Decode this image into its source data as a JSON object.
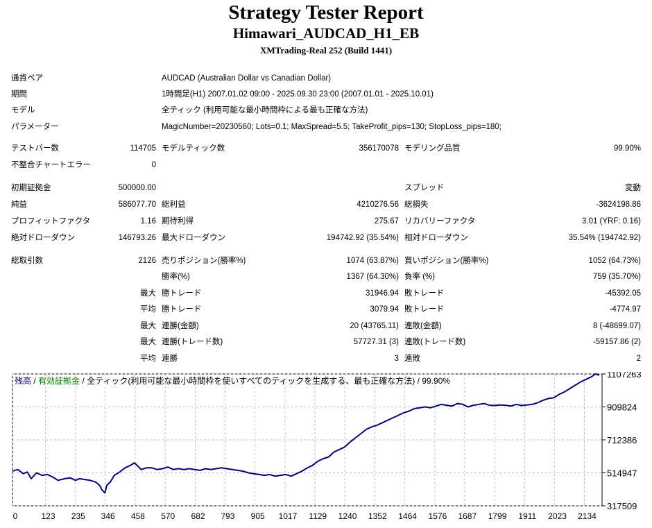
{
  "report": {
    "title": "Strategy Tester Report",
    "subtitle": "Himawari_AUDCAD_H1_EB",
    "build": "XMTrading-Real 252 (Build 1441)"
  },
  "info": [
    {
      "label": "通貨ペア",
      "value": "AUDCAD (Australian Dollar vs Canadian Dollar)"
    },
    {
      "label": "期間",
      "value": "1時間足(H1) 2007.01.02 09:00 - 2025.09.30 23:00 (2007.01.01 - 2025.10.01)"
    },
    {
      "label": "モデル",
      "value": "全ティック (利用可能な最小時間枠による最も正確な方法)"
    },
    {
      "label": "パラメーター",
      "value": "MagicNumber=20230560; Lots=0.1; MaxSpread=5.5; TakeProfit_pips=130; StopLoss_pips=180;"
    }
  ],
  "rows": [
    {
      "c": [
        {
          "t": "テストバー数",
          "x": 16
        },
        {
          "t": "114705",
          "x": 225,
          "r": true
        },
        {
          "t": "モデルティック数",
          "x": 233
        },
        {
          "t": "356170078",
          "x": 575,
          "r": true
        },
        {
          "t": "モデリング品質",
          "x": 583
        },
        {
          "t": "99.90%",
          "x": 924,
          "r": true
        }
      ]
    },
    {
      "c": [
        {
          "t": "不整合チャートエラー",
          "x": 16
        },
        {
          "t": "0",
          "x": 225,
          "r": true
        }
      ]
    },
    {
      "c": [
        {
          "t": "初期証拠金",
          "x": 16
        },
        {
          "t": "500000.00",
          "x": 225,
          "r": true
        },
        {
          "t": "スプレッド",
          "x": 583
        },
        {
          "t": "変動",
          "x": 924,
          "r": true
        }
      ]
    },
    {
      "c": [
        {
          "t": "純益",
          "x": 16
        },
        {
          "t": "586077.70",
          "x": 225,
          "r": true
        },
        {
          "t": "総利益",
          "x": 233
        },
        {
          "t": "4210276.56",
          "x": 575,
          "r": true
        },
        {
          "t": "総損失",
          "x": 583
        },
        {
          "t": "-3624198.86",
          "x": 924,
          "r": true
        }
      ]
    },
    {
      "c": [
        {
          "t": "プロフィットファクタ",
          "x": 16
        },
        {
          "t": "1.16",
          "x": 225,
          "r": true
        },
        {
          "t": "期待利得",
          "x": 233
        },
        {
          "t": "275.67",
          "x": 575,
          "r": true
        },
        {
          "t": "リカバリーファクタ",
          "x": 583
        },
        {
          "t": "3.01 (YRF: 0.16)",
          "x": 924,
          "r": true
        }
      ]
    },
    {
      "c": [
        {
          "t": "絶対ドローダウン",
          "x": 16
        },
        {
          "t": "146793.26",
          "x": 225,
          "r": true
        },
        {
          "t": "最大ドローダウン",
          "x": 233
        },
        {
          "t": "194742.92 (35.54%)",
          "x": 575,
          "r": true
        },
        {
          "t": "相対ドローダウン",
          "x": 583
        },
        {
          "t": "35.54% (194742.92)",
          "x": 924,
          "r": true
        }
      ]
    },
    {
      "c": [
        {
          "t": "総取引数",
          "x": 16
        },
        {
          "t": "2126",
          "x": 225,
          "r": true
        },
        {
          "t": "売りポジション(勝率%)",
          "x": 233
        },
        {
          "t": "1074 (63.87%)",
          "x": 575,
          "r": true
        },
        {
          "t": "買いポジション(勝率%)",
          "x": 583
        },
        {
          "t": "1052 (64.73%)",
          "x": 924,
          "r": true
        }
      ]
    },
    {
      "c": [
        {
          "t": "勝率(%)",
          "x": 233
        },
        {
          "t": "1367 (64.30%)",
          "x": 575,
          "r": true
        },
        {
          "t": "負率 (%)",
          "x": 583
        },
        {
          "t": "759 (35.70%)",
          "x": 924,
          "r": true
        }
      ]
    },
    {
      "c": [
        {
          "t": "最大",
          "x": 225,
          "r": true
        },
        {
          "t": "勝トレード",
          "x": 233
        },
        {
          "t": "31946.94",
          "x": 575,
          "r": true
        },
        {
          "t": "敗トレード",
          "x": 583
        },
        {
          "t": "-45392.05",
          "x": 924,
          "r": true
        }
      ]
    },
    {
      "c": [
        {
          "t": "平均",
          "x": 225,
          "r": true
        },
        {
          "t": "勝トレード",
          "x": 233
        },
        {
          "t": "3079.94",
          "x": 575,
          "r": true
        },
        {
          "t": "敗トレード",
          "x": 583
        },
        {
          "t": "-4774.97",
          "x": 924,
          "r": true
        }
      ]
    },
    {
      "c": [
        {
          "t": "最大",
          "x": 225,
          "r": true
        },
        {
          "t": "連勝(金額)",
          "x": 233
        },
        {
          "t": "20 (43765.11)",
          "x": 575,
          "r": true
        },
        {
          "t": "連敗(金額)",
          "x": 583
        },
        {
          "t": "8 (-48699.07)",
          "x": 924,
          "r": true
        }
      ]
    },
    {
      "c": [
        {
          "t": "最大",
          "x": 225,
          "r": true
        },
        {
          "t": "連勝(トレード数)",
          "x": 233
        },
        {
          "t": "57727.31 (3)",
          "x": 575,
          "r": true
        },
        {
          "t": "連敗(トレード数)",
          "x": 583
        },
        {
          "t": "-59157.86 (2)",
          "x": 924,
          "r": true
        }
      ]
    },
    {
      "c": [
        {
          "t": "平均",
          "x": 225,
          "r": true
        },
        {
          "t": "連勝",
          "x": 233
        },
        {
          "t": "3",
          "x": 575,
          "r": true
        },
        {
          "t": "連敗",
          "x": 583
        },
        {
          "t": "2",
          "x": 924,
          "r": true
        }
      ]
    }
  ],
  "chart_data": {
    "type": "line",
    "legend": {
      "balance": "残高",
      "sep1": " / ",
      "equity": "有効証拠金",
      "sep2": " / ",
      "model": "全ティック(利用可能な最小時間枠を使いすべてのティックを生成する、最も正確な方法)",
      "sep3": " / ",
      "quality": "99.90%"
    },
    "xticks": [
      0,
      123,
      235,
      346,
      458,
      570,
      682,
      793,
      905,
      1017,
      1129,
      1240,
      1352,
      1464,
      1576,
      1687,
      1799,
      1911,
      2023,
      2134
    ],
    "yticks": [
      1107263,
      909824,
      712386,
      514947,
      317509
    ],
    "xlim": [
      0,
      2200
    ],
    "ylim": [
      317509,
      1107263
    ],
    "grid": true,
    "colors": {
      "balance": "#000080",
      "equity": "#008000",
      "grid": "#c0c0c0"
    },
    "series": [
      {
        "name": "残高",
        "values": [
          [
            0,
            525000
          ],
          [
            20,
            535000
          ],
          [
            40,
            510000
          ],
          [
            55,
            520000
          ],
          [
            70,
            480000
          ],
          [
            90,
            515000
          ],
          [
            110,
            500000
          ],
          [
            130,
            505000
          ],
          [
            150,
            490000
          ],
          [
            170,
            470000
          ],
          [
            195,
            480000
          ],
          [
            215,
            485000
          ],
          [
            235,
            470000
          ],
          [
            250,
            480000
          ],
          [
            270,
            475000
          ],
          [
            290,
            470000
          ],
          [
            310,
            460000
          ],
          [
            325,
            440000
          ],
          [
            335,
            410000
          ],
          [
            345,
            395000
          ],
          [
            352,
            440000
          ],
          [
            365,
            460000
          ],
          [
            380,
            500000
          ],
          [
            400,
            520000
          ],
          [
            420,
            545000
          ],
          [
            440,
            560000
          ],
          [
            455,
            575000
          ],
          [
            468,
            555000
          ],
          [
            480,
            535000
          ],
          [
            500,
            545000
          ],
          [
            520,
            545000
          ],
          [
            540,
            535000
          ],
          [
            560,
            540000
          ],
          [
            580,
            550000
          ],
          [
            600,
            535000
          ],
          [
            620,
            540000
          ],
          [
            640,
            535000
          ],
          [
            660,
            540000
          ],
          [
            680,
            535000
          ],
          [
            700,
            530000
          ],
          [
            720,
            540000
          ],
          [
            740,
            535000
          ],
          [
            760,
            540000
          ],
          [
            780,
            545000
          ],
          [
            800,
            540000
          ],
          [
            820,
            535000
          ],
          [
            840,
            530000
          ],
          [
            860,
            525000
          ],
          [
            880,
            515000
          ],
          [
            900,
            510000
          ],
          [
            920,
            505000
          ],
          [
            940,
            500000
          ],
          [
            960,
            505000
          ],
          [
            980,
            495000
          ],
          [
            1000,
            500000
          ],
          [
            1020,
            505000
          ],
          [
            1040,
            495000
          ],
          [
            1060,
            510000
          ],
          [
            1080,
            525000
          ],
          [
            1100,
            545000
          ],
          [
            1120,
            560000
          ],
          [
            1140,
            585000
          ],
          [
            1160,
            600000
          ],
          [
            1180,
            610000
          ],
          [
            1200,
            640000
          ],
          [
            1220,
            655000
          ],
          [
            1240,
            670000
          ],
          [
            1260,
            700000
          ],
          [
            1280,
            725000
          ],
          [
            1300,
            750000
          ],
          [
            1320,
            775000
          ],
          [
            1340,
            790000
          ],
          [
            1360,
            800000
          ],
          [
            1380,
            815000
          ],
          [
            1400,
            830000
          ],
          [
            1420,
            845000
          ],
          [
            1440,
            860000
          ],
          [
            1460,
            875000
          ],
          [
            1480,
            885000
          ],
          [
            1500,
            900000
          ],
          [
            1520,
            905000
          ],
          [
            1540,
            910000
          ],
          [
            1560,
            905000
          ],
          [
            1580,
            915000
          ],
          [
            1600,
            925000
          ],
          [
            1620,
            920000
          ],
          [
            1640,
            915000
          ],
          [
            1660,
            930000
          ],
          [
            1680,
            925000
          ],
          [
            1700,
            910000
          ],
          [
            1720,
            920000
          ],
          [
            1740,
            925000
          ],
          [
            1760,
            930000
          ],
          [
            1780,
            920000
          ],
          [
            1800,
            918000
          ],
          [
            1820,
            922000
          ],
          [
            1840,
            920000
          ],
          [
            1860,
            915000
          ],
          [
            1880,
            925000
          ],
          [
            1900,
            918000
          ],
          [
            1920,
            922000
          ],
          [
            1940,
            925000
          ],
          [
            1960,
            935000
          ],
          [
            1980,
            950000
          ],
          [
            2000,
            960000
          ],
          [
            2020,
            965000
          ],
          [
            2040,
            985000
          ],
          [
            2060,
            1000000
          ],
          [
            2080,
            1020000
          ],
          [
            2100,
            1040000
          ],
          [
            2120,
            1060000
          ],
          [
            2140,
            1075000
          ],
          [
            2160,
            1090000
          ],
          [
            2175,
            1107263
          ],
          [
            2190,
            1100000
          ]
        ]
      }
    ]
  }
}
